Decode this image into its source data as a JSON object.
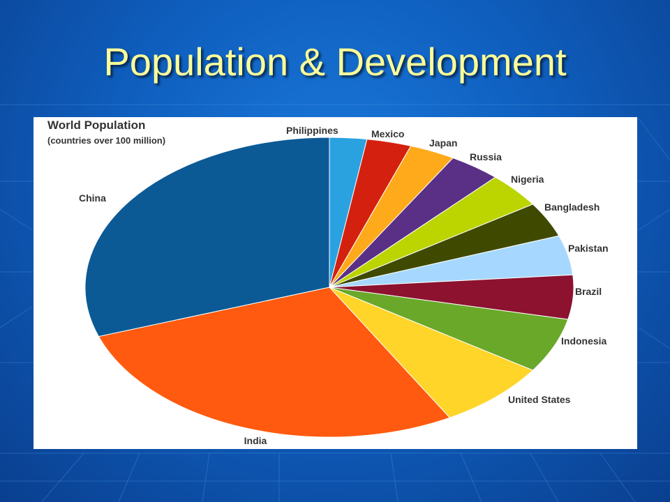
{
  "slide": {
    "title": "Population & Development",
    "title_color": "#ffff99"
  },
  "chart_data": {
    "type": "pie",
    "title": "World Population",
    "subtitle": "(countries over 100 million)",
    "legend": "labels beside slices",
    "slices": [
      {
        "label": "Philippines",
        "value": 3.0,
        "color": "#2aa2e0"
      },
      {
        "label": "Mexico",
        "value": 3.6,
        "color": "#d4200f"
      },
      {
        "label": "Japan",
        "value": 3.7,
        "color": "#ffaa1a"
      },
      {
        "label": "Russia",
        "value": 4.2,
        "color": "#5a2f86"
      },
      {
        "label": "Nigeria",
        "value": 4.6,
        "color": "#bcd400"
      },
      {
        "label": "Bangladesh",
        "value": 4.6,
        "color": "#3f4a00"
      },
      {
        "label": "Pakistan",
        "value": 5.2,
        "color": "#a6d8ff"
      },
      {
        "label": "Brazil",
        "value": 5.8,
        "color": "#8c1230"
      },
      {
        "label": "Indonesia",
        "value": 7.2,
        "color": "#6aa82a"
      },
      {
        "label": "United States",
        "value": 9.1,
        "color": "#ffd52a"
      },
      {
        "label": "India",
        "value": 34.0,
        "color": "#ff5a0f"
      },
      {
        "label": "China",
        "value": 37.0,
        "color": "#0b5a96"
      }
    ]
  }
}
